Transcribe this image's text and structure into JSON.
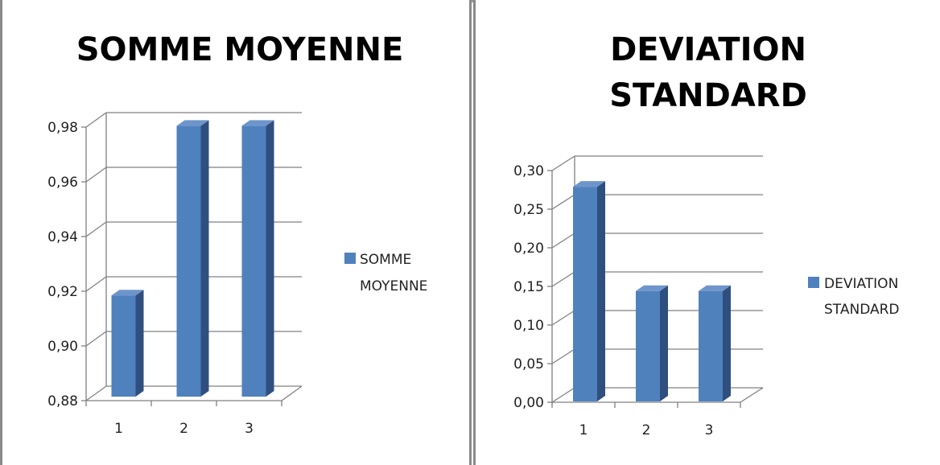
{
  "colors": {
    "bar_front": "#4F81BD",
    "bar_side": "#2F4F7F",
    "bar_top": "#6E95CB",
    "grid": "#808080"
  },
  "chart_data": [
    {
      "type": "bar",
      "title": "SOMME MOYENNE",
      "categories": [
        "1",
        "2",
        "3"
      ],
      "series": [
        {
          "name": "SOMME MOYENNE",
          "values": [
            0.917,
            0.979,
            0.979
          ]
        }
      ],
      "ylim": [
        0.88,
        0.98
      ],
      "yticks": [
        "0,88",
        "0,90",
        "0,92",
        "0,94",
        "0,96",
        "0,98"
      ],
      "legend": {
        "lines": [
          "SOMME",
          "MOYENNE"
        ],
        "position": "right"
      },
      "grid": true
    },
    {
      "type": "bar",
      "title": "DEVIATION STANDARD",
      "title_lines": [
        "DEVIATION",
        "STANDARD"
      ],
      "categories": [
        "1",
        "2",
        "3"
      ],
      "series": [
        {
          "name": "DEVIATION STANDARD",
          "values": [
            0.278,
            0.143,
            0.143
          ]
        }
      ],
      "ylim": [
        0.0,
        0.3
      ],
      "yticks": [
        "0,00",
        "0,05",
        "0,10",
        "0,15",
        "0,20",
        "0,25",
        "0,30"
      ],
      "legend": {
        "lines": [
          "DEVIATION",
          "STANDARD"
        ],
        "position": "right"
      },
      "grid": true
    }
  ]
}
